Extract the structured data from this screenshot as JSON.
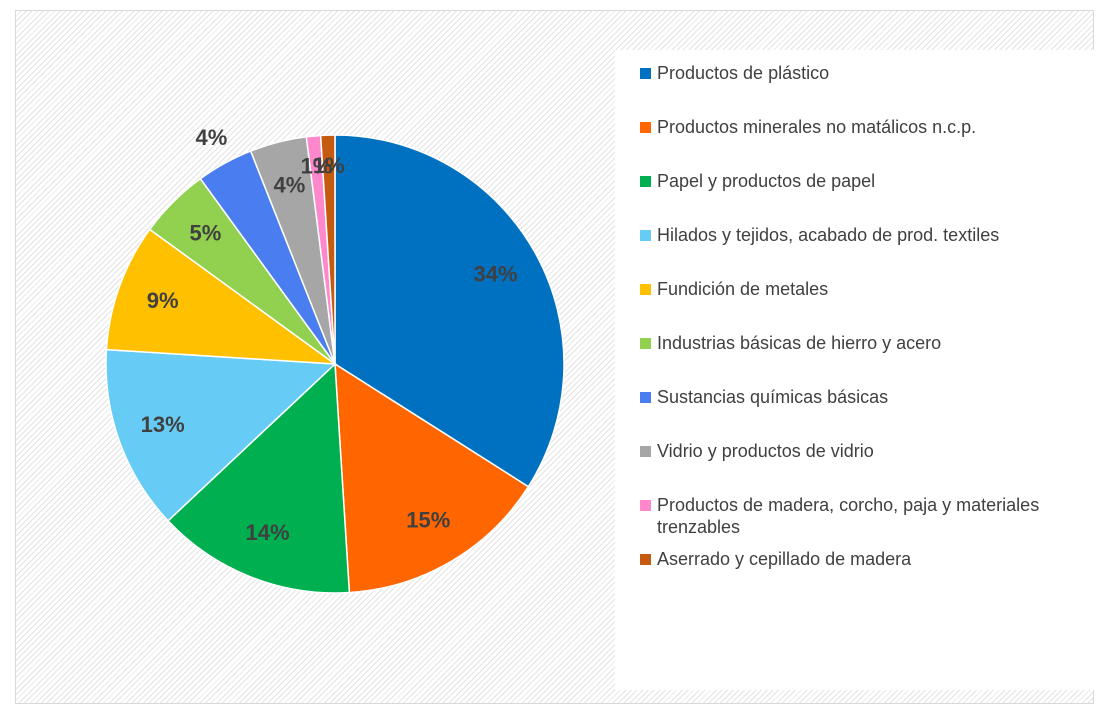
{
  "chart_data": {
    "type": "pie",
    "categories": [
      "Productos de plástico",
      "Productos minerales no matálicos n.c.p.",
      "Papel y productos de papel",
      "Hilados y tejidos, acabado de prod. textiles",
      "Fundición de metales",
      "Industrias básicas de hierro y acero",
      "Sustancias químicas básicas",
      "Vidrio y productos de vidrio",
      "Productos de madera, corcho, paja y materiales trenzables",
      "Aserrado y cepillado de madera"
    ],
    "values": [
      34,
      15,
      14,
      13,
      9,
      5,
      4,
      4,
      1,
      1
    ],
    "value_labels": [
      "34%",
      "15%",
      "14%",
      "13%",
      "9%",
      "5%",
      "4%",
      "4%",
      "1%",
      "1%"
    ],
    "colors": [
      "#0070c0",
      "#ff6600",
      "#00b050",
      "#66ccf5",
      "#ffc000",
      "#92d050",
      "#4a7ef0",
      "#a6a6a6",
      "#ff88cc",
      "#c55a11"
    ],
    "legend": "right"
  }
}
